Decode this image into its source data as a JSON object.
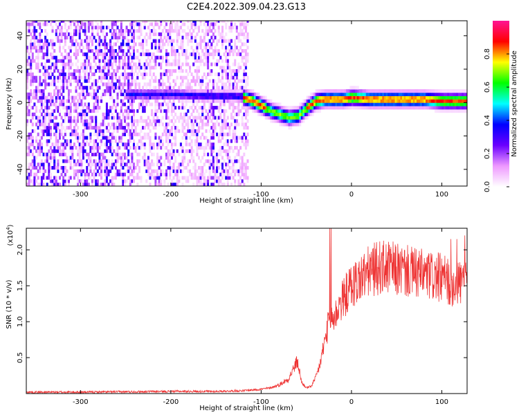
{
  "figure": {
    "title": "C2E4.2022.309.04.23.G13"
  },
  "chart_data": [
    {
      "type": "heatmap",
      "xlabel": "Height of straight line (km)",
      "ylabel": "Frequency (Hz)",
      "xlim": [
        -360,
        128
      ],
      "ylim": [
        -50,
        49
      ],
      "x_ticks": [
        -300,
        -200,
        -100,
        0,
        100
      ],
      "y_ticks": [
        -40,
        -20,
        0,
        20,
        40
      ],
      "colorbar": {
        "label": "Normalized spectral amplitude",
        "range": [
          0.0,
          1.0
        ],
        "ticks": [
          "0.0",
          "0.2",
          "0.4",
          "0.6",
          "0.8"
        ],
        "colors": [
          "#ffffff",
          "#ee99ff",
          "#6a00ff",
          "#0000ff",
          "#00ffff",
          "#00ff00",
          "#ffff00",
          "#ff0000",
          "#ff1493"
        ]
      },
      "ridge": {
        "x": [
          -240,
          -200,
          -150,
          -130,
          -120,
          -110,
          -100,
          -90,
          -80,
          -70,
          -60,
          -50,
          -40,
          -30,
          -20,
          -10,
          0,
          20,
          40,
          60,
          80,
          100,
          128
        ],
        "y": [
          4,
          4,
          3,
          3,
          2,
          0,
          -3,
          -6,
          -8,
          -10,
          -9,
          -4,
          0,
          1,
          1,
          1,
          2,
          1,
          1,
          1,
          1,
          0,
          0
        ]
      },
      "grid": false
    },
    {
      "type": "line",
      "xlabel": "Height of straight line (km)",
      "ylabel": "SNR (10 * v/v)",
      "y_multiplier": "(x10",
      "y_multiplier_exp": "4",
      "y_multiplier_close": ")",
      "xlim": [
        -360,
        128
      ],
      "ylim": [
        0,
        2.3
      ],
      "x_ticks": [
        -300,
        -200,
        -100,
        0,
        100
      ],
      "y_ticks": [
        "0.5",
        "1.0",
        "1.5",
        "2.0"
      ],
      "y_tick_values": [
        0.5,
        1.0,
        1.5,
        2.0
      ],
      "series": [
        {
          "color": "#ee3333",
          "x": [
            -360,
            -300,
            -200,
            -150,
            -120,
            -100,
            -90,
            -80,
            -70,
            -60,
            -55,
            -50,
            -45,
            -40,
            -35,
            -30,
            -25,
            -22,
            -20,
            -15,
            -10,
            -5,
            0,
            10,
            20,
            30,
            40,
            60,
            80,
            100,
            110,
            120,
            125,
            128
          ],
          "y": [
            0.02,
            0.02,
            0.03,
            0.03,
            0.04,
            0.06,
            0.08,
            0.12,
            0.2,
            0.45,
            0.15,
            0.08,
            0.1,
            0.2,
            0.4,
            0.7,
            1.0,
            1.1,
            1.0,
            1.2,
            1.3,
            1.4,
            1.5,
            1.6,
            1.7,
            1.75,
            1.75,
            1.7,
            1.65,
            1.6,
            1.55,
            1.55,
            1.6,
            1.6
          ]
        }
      ],
      "grid": false
    }
  ]
}
